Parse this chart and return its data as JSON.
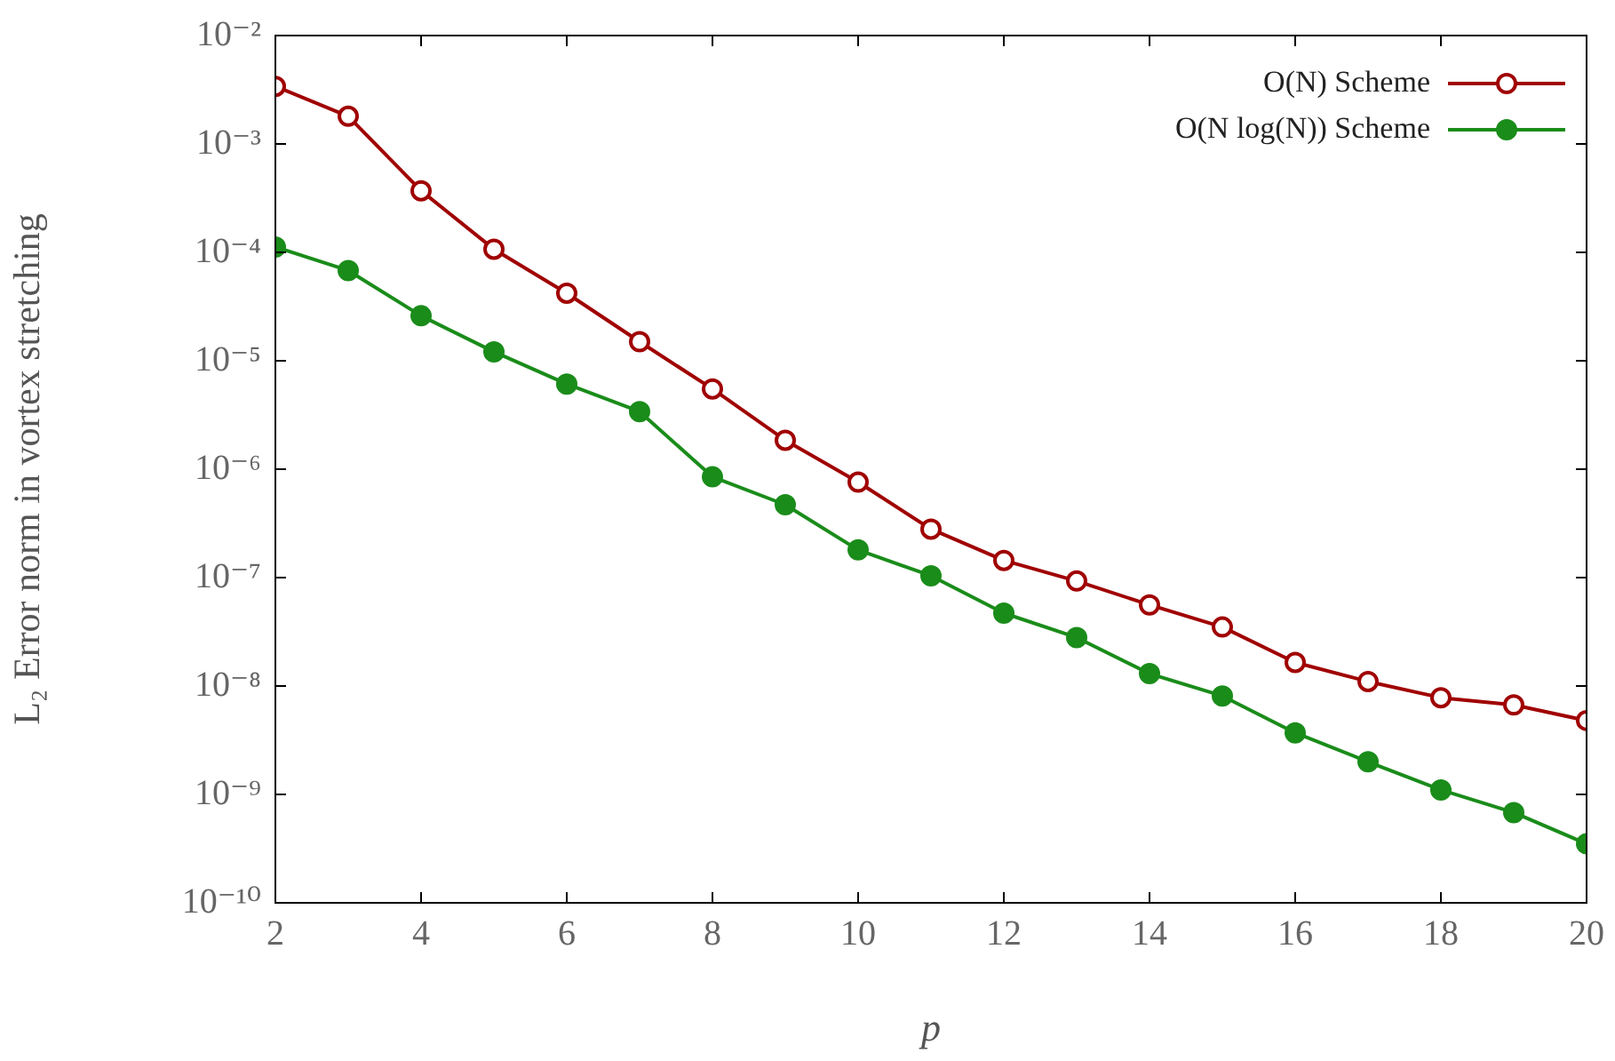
{
  "chart_data": {
    "type": "line",
    "xlabel": "p",
    "ylabel": "L₂ Error norm in vortex stretching",
    "x": [
      2,
      3,
      4,
      5,
      6,
      7,
      8,
      9,
      10,
      11,
      12,
      13,
      14,
      15,
      16,
      17,
      18,
      19,
      20
    ],
    "series": [
      {
        "name": "O(N) Scheme",
        "color": "#a00000",
        "values": [
          0.0034,
          0.0018,
          0.00037,
          0.000107,
          4.2e-05,
          1.5e-05,
          5.5e-06,
          1.85e-06,
          7.6e-07,
          2.8e-07,
          1.44e-07,
          9.3e-08,
          5.6e-08,
          3.5e-08,
          1.65e-08,
          1.1e-08,
          7.8e-09,
          6.7e-09,
          4.8e-09
        ]
      },
      {
        "name": "O(N log(N)) Scheme",
        "color": "#1a8c1a",
        "values": [
          0.000112,
          6.8e-05,
          2.6e-05,
          1.21e-05,
          6.1e-06,
          3.4e-06,
          8.5e-07,
          4.7e-07,
          1.8e-07,
          1.04e-07,
          4.7e-08,
          2.8e-08,
          1.3e-08,
          8.1e-09,
          3.7e-09,
          2e-09,
          1.1e-09,
          6.8e-10,
          3.5e-10
        ]
      }
    ],
    "xlim": [
      2,
      20
    ],
    "xticks": [
      2,
      4,
      6,
      8,
      10,
      12,
      14,
      16,
      18,
      20
    ],
    "ylim": [
      1e-10,
      0.01
    ],
    "yticks": [
      {
        "value": 1e-10,
        "label": "10⁻¹⁰"
      },
      {
        "value": 1e-09,
        "label": "10⁻⁹"
      },
      {
        "value": 1e-08,
        "label": "10⁻⁸"
      },
      {
        "value": 1e-07,
        "label": "10⁻⁷"
      },
      {
        "value": 1e-06,
        "label": "10⁻⁶"
      },
      {
        "value": 1e-05,
        "label": "10⁻⁵"
      },
      {
        "value": 0.0001,
        "label": "10⁻⁴"
      },
      {
        "value": 0.001,
        "label": "10⁻³"
      },
      {
        "value": 0.01,
        "label": "10⁻²"
      }
    ],
    "log": "y",
    "grid": false,
    "legend": "top right",
    "marker": "circle",
    "line_style": "solid"
  }
}
